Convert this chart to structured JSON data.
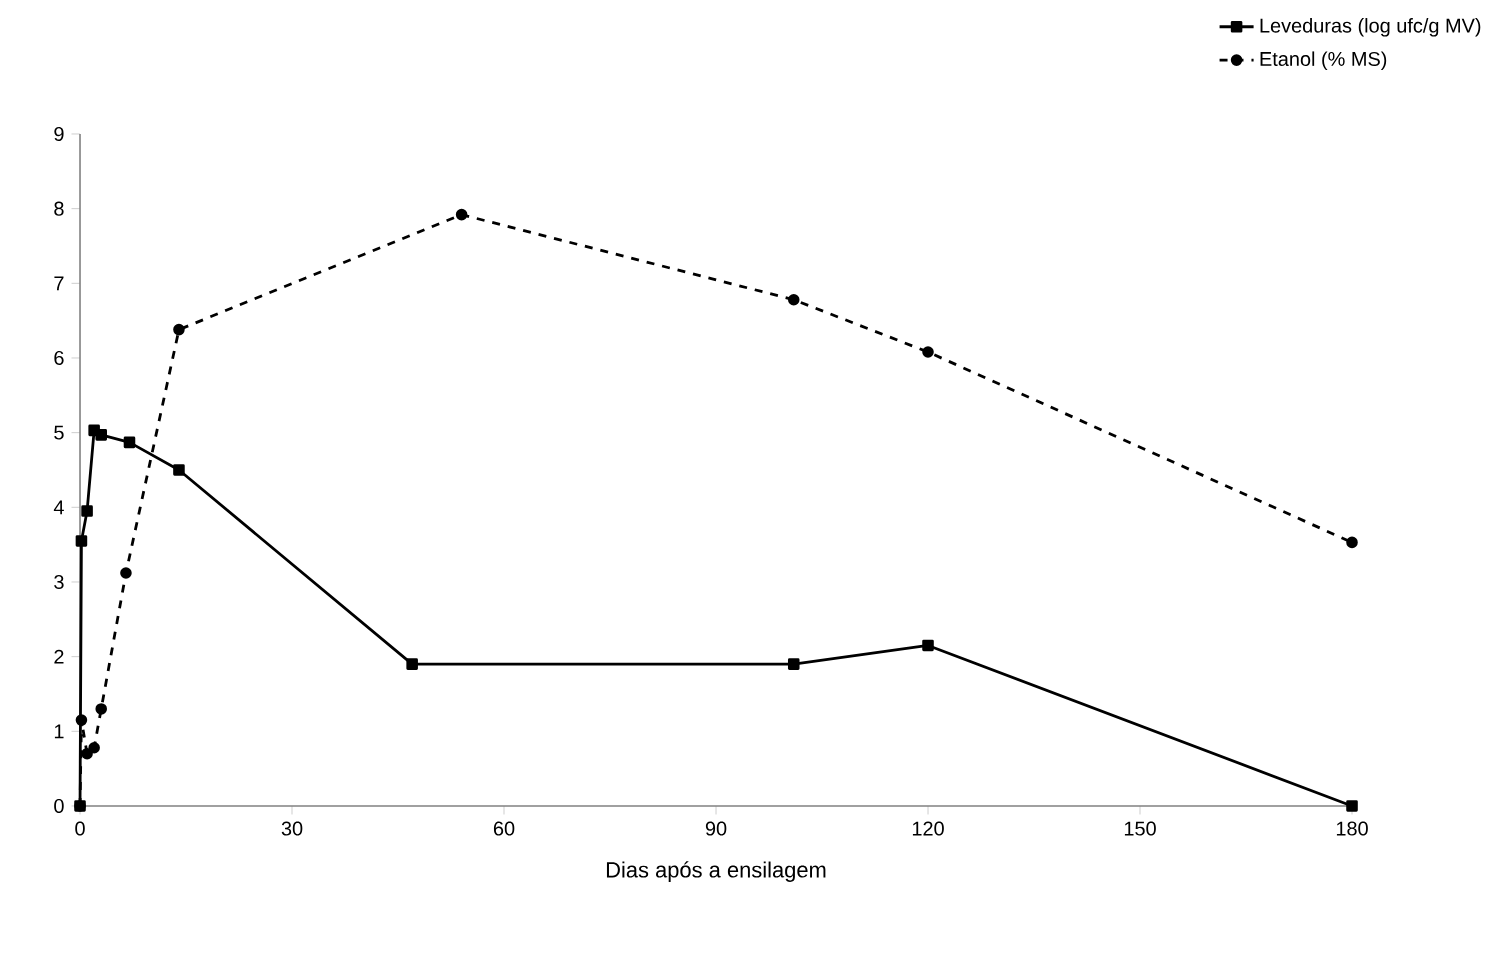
{
  "chart_data": {
    "type": "line",
    "xlabel": "Dias após a ensilagem",
    "xlim": [
      0,
      180
    ],
    "xticks": [
      0,
      30,
      60,
      90,
      120,
      150,
      180
    ],
    "ylim": [
      0,
      9
    ],
    "yticks": [
      0,
      1,
      2,
      3,
      4,
      5,
      6,
      7,
      8,
      9
    ],
    "legend": "top right",
    "grid": false,
    "series": [
      {
        "name": "Leveduras (log ufc/g MV)",
        "color": "#000000",
        "line_style": "solid",
        "marker": "square",
        "x": [
          0,
          0.2,
          1,
          2,
          3,
          7,
          14,
          47,
          101,
          120,
          180
        ],
        "values": [
          0,
          3.55,
          3.95,
          5.03,
          4.97,
          4.87,
          4.5,
          1.9,
          1.9,
          2.15,
          0
        ]
      },
      {
        "name": "Etanol (% MS)",
        "color": "#000000",
        "line_style": "dashed",
        "marker": "circle",
        "x": [
          0,
          0.2,
          1,
          2,
          3,
          6.5,
          14,
          54,
          101,
          120,
          180
        ],
        "values": [
          0,
          1.15,
          0.7,
          0.78,
          1.3,
          3.12,
          6.38,
          7.92,
          6.78,
          6.08,
          3.53
        ]
      }
    ]
  }
}
